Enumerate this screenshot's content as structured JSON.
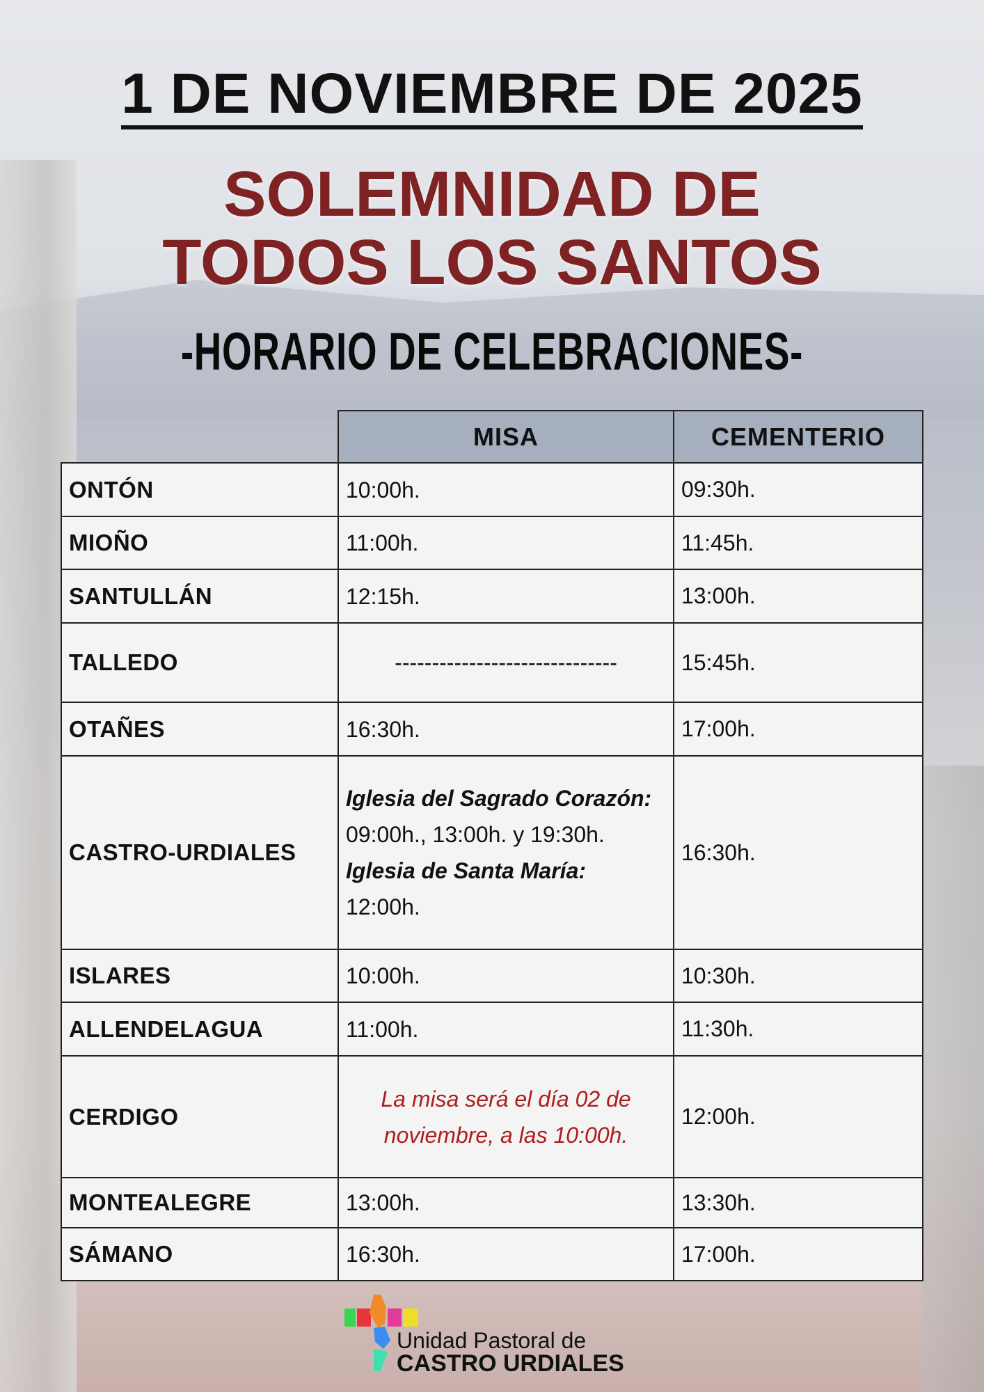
{
  "header": {
    "date": "1 DE NOVIEMBRE DE 2025",
    "title_line1": "SOLEMNIDAD DE",
    "title_line2": "TODOS LOS SANTOS",
    "subtitle": "-HORARIO DE CELEBRACIONES-"
  },
  "table": {
    "columns": [
      "MISA",
      "CEMENTERIO"
    ],
    "rows": [
      {
        "place": "ONTÓN",
        "misa": "10:00h.",
        "cementerio": "09:30h."
      },
      {
        "place": "MIOÑO",
        "misa": "11:00h.",
        "cementerio": "11:45h."
      },
      {
        "place": "SANTULLÁN",
        "misa": "12:15h.",
        "cementerio": "13:00h."
      },
      {
        "place": "TALLEDO",
        "misa": "------------------------------",
        "cementerio": "15:45h."
      },
      {
        "place": "OTAÑES",
        "misa": "16:30h.",
        "cementerio": "17:00h."
      },
      {
        "place": "CASTRO-URDIALES",
        "misa_parts": {
          "church1": "Iglesia del Sagrado Corazón:",
          "times1": "09:00h., 13:00h. y 19:30h.",
          "church2": "Iglesia de Santa María:",
          "times2": "12:00h."
        },
        "cementerio": "16:30h."
      },
      {
        "place": "ISLARES",
        "misa": "10:00h.",
        "cementerio": "10:30h."
      },
      {
        "place": "ALLENDELAGUA",
        "misa": "11:00h.",
        "cementerio": "11:30h."
      },
      {
        "place": "CERDIGO",
        "misa": "La misa será el día 02 de noviembre, a las 10:00h.",
        "cementerio": "12:00h."
      },
      {
        "place": "MONTEALEGRE",
        "misa": "13:00h.",
        "cementerio": "13:30h."
      },
      {
        "place": "SÁMANO",
        "misa": "16:30h.",
        "cementerio": "17:00h."
      }
    ]
  },
  "logo": {
    "line1": "Unidad Pastoral de",
    "line2": "CASTRO URDIALES"
  },
  "colors": {
    "title_red": "#7e2224",
    "note_red": "#b01c1c",
    "header_fill": "#a5afbe"
  }
}
